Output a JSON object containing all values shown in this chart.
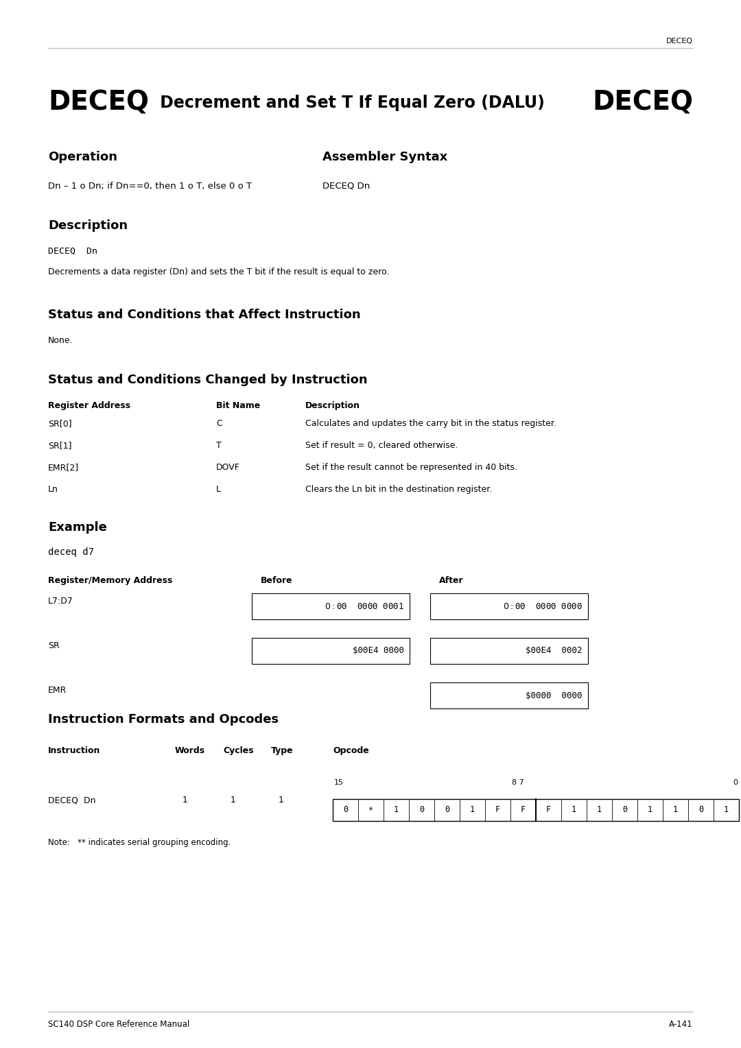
{
  "page_header": "DECEQ",
  "title_bold": "DECEQ",
  "title_middle": " Decrement and Set T If Equal Zero (DALU) ",
  "title_bold2": "DECEQ",
  "section_operation": "Operation",
  "section_assembler": "Assembler Syntax",
  "operation_text": "Dn – 1 o Dn; if Dn==0, then 1 o T, else 0 o T",
  "assembler_text": "DECEQ Dn",
  "section_description": "Description",
  "desc_code": "DECEQ  Dn",
  "desc_text": "Decrements a data register (Dn) and sets the T bit if the result is equal to zero.",
  "section_status_affect": "Status and Conditions that Affect Instruction",
  "status_affect_text": "None.",
  "section_status_changed": "Status and Conditions Changed by Instruction",
  "table_headers": [
    "Register Address",
    "Bit Name",
    "Description"
  ],
  "table_rows": [
    [
      "SR[0]",
      "C",
      "Calculates and updates the carry bit in the status register."
    ],
    [
      "SR[1]",
      "T",
      "Set if result = 0, cleared otherwise."
    ],
    [
      "EMR[2]",
      "DOVF",
      "Set if the result cannot be represented in 40 bits."
    ],
    [
      "Ln",
      "L",
      "Clears the Ln bit in the destination register."
    ]
  ],
  "section_example": "Example",
  "example_code": "deceq d7",
  "example_table_headers": [
    "Register/Memory Address",
    "Before",
    "After"
  ],
  "example_rows": [
    [
      "L7:D7",
      "$0:$00  0000 0001",
      "$0:$00  0000 0000"
    ],
    [
      "SR",
      "$00E4 0000",
      "$00E4  0002"
    ],
    [
      "EMR",
      "",
      "$0000  0000"
    ]
  ],
  "section_formats": "Instruction Formats and Opcodes",
  "formats_headers": [
    "Instruction",
    "Words",
    "Cycles",
    "Type",
    "Opcode"
  ],
  "opcode_cells": [
    "0",
    "*",
    "1",
    "0",
    "0",
    "1",
    "F",
    "F",
    "F",
    "1",
    "1",
    "0",
    "1",
    "1",
    "0",
    "1"
  ],
  "instruction_row": [
    "DECEQ  Dn",
    "1",
    "1",
    "1"
  ],
  "note_text": "Note:   ** indicates serial grouping encoding.",
  "footer_left": "SC140 DSP Core Reference Manual",
  "footer_right": "A-141",
  "bg_color": "#ffffff",
  "text_color": "#000000"
}
